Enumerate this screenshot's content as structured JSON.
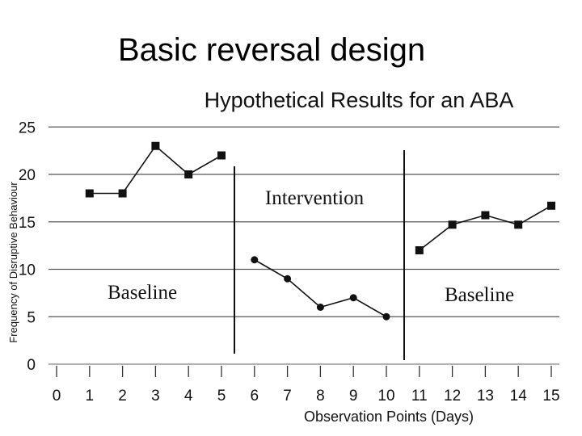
{
  "slide": {
    "title": "Basic reversal design"
  },
  "chart_data": {
    "type": "line",
    "title": "Hypothetical Results for an ABA",
    "xlabel": "Observation Points (Days)",
    "ylabel": "Frequency of Disruptive Behaviour",
    "xlim": [
      0,
      15
    ],
    "ylim": [
      0,
      25
    ],
    "x_ticks": [
      "0",
      "1",
      "2",
      "3",
      "4",
      "5",
      "6",
      "7",
      "8",
      "9",
      "10",
      "11",
      "12",
      "13",
      "14",
      "15"
    ],
    "y_ticks": [
      "0",
      "5",
      "10",
      "15",
      "20",
      "25"
    ],
    "grid": "horizontal",
    "phase_change_after": [
      5,
      10
    ],
    "phases": [
      {
        "label": "Baseline",
        "marker": "square",
        "x": [
          1,
          2,
          3,
          4,
          5
        ],
        "y": [
          18,
          18,
          23,
          20,
          22
        ]
      },
      {
        "label": "Intervention",
        "marker": "circle",
        "x": [
          6,
          7,
          8,
          9,
          10
        ],
        "y": [
          11,
          9,
          6,
          7,
          5
        ]
      },
      {
        "label": "Baseline",
        "marker": "square",
        "x": [
          11,
          12,
          13,
          14,
          15
        ],
        "y": [
          12,
          14.7,
          15.7,
          14.7,
          16.7
        ]
      }
    ]
  }
}
